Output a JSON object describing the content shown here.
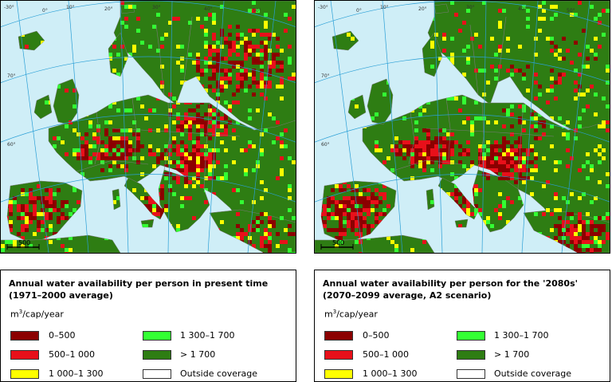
{
  "maps": [
    {
      "panel": "present",
      "legend": {
        "title": "Annual water availability per person in present time\n(1971–2000 average)",
        "unit_base": "m",
        "unit_sup": "3",
        "unit_rest": "/cap/year",
        "classes": [
          {
            "label": "0–500",
            "color": "#8b0000"
          },
          {
            "label": "500–1 000",
            "color": "#e8101a"
          },
          {
            "label": "1 000–1 300",
            "color": "#ffff00"
          },
          {
            "label": "1 300–1 700",
            "color": "#33ff33"
          },
          {
            "label": "> 1 700",
            "color": "#2e7d13"
          },
          {
            "label": "Outside coverage",
            "color": "#ffffff"
          }
        ]
      },
      "scale_label": "500",
      "graticule_labels": [
        "-30°",
        "0°",
        "10°",
        "20°",
        "30°",
        "40°",
        "50°",
        "60°",
        "70°"
      ]
    },
    {
      "panel": "2080s",
      "legend": {
        "title": "Annual water availability per person for the '2080s'\n(2070–2099 average, A2 scenario)",
        "unit_base": "m",
        "unit_sup": "3",
        "unit_rest": "/cap/year",
        "classes": [
          {
            "label": "0–500",
            "color": "#8b0000"
          },
          {
            "label": "500–1 000",
            "color": "#e8101a"
          },
          {
            "label": "1 000–1 300",
            "color": "#ffff00"
          },
          {
            "label": "1 300–1 700",
            "color": "#33ff33"
          },
          {
            "label": "> 1 700",
            "color": "#2e7d13"
          },
          {
            "label": "Outside coverage",
            "color": "#ffffff"
          }
        ]
      },
      "scale_label": "500",
      "graticule_labels": [
        "-30°",
        "0°",
        "10°",
        "20°",
        "30°",
        "40°",
        "50°",
        "60°",
        "70°"
      ]
    }
  ],
  "colors": {
    "sea": "#cfeef7",
    "land_wet": "#2e7d13",
    "land_dry": "#8b0000",
    "graticule": "#2a9fd6",
    "border": "#7a7a7a"
  }
}
